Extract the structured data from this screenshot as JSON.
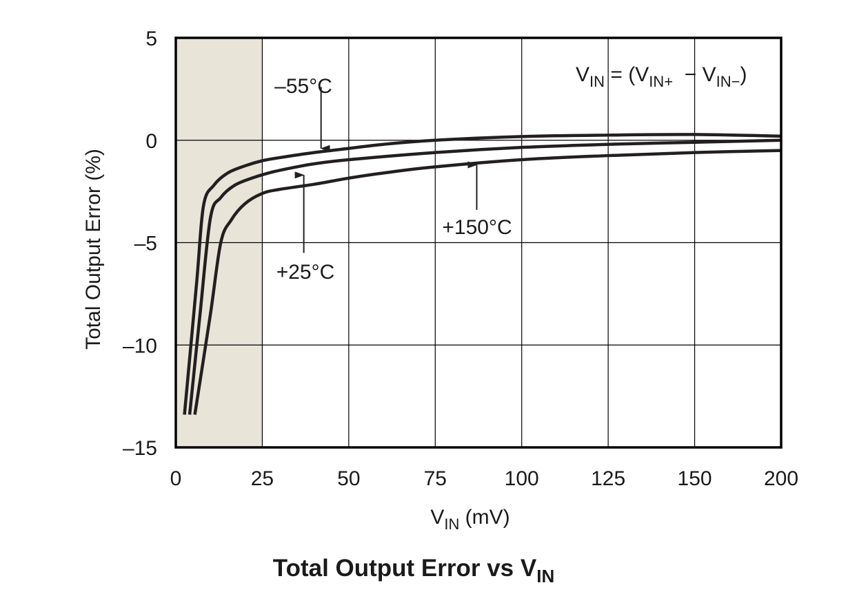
{
  "chart_data": {
    "type": "line",
    "title": "Total Output Error vs V",
    "title_sub": "IN",
    "xlabel": "V",
    "xlabel_sub": "IN",
    "xlabel_unit": " (mV)",
    "ylabel": "Total Output Error (%)",
    "xlim": [
      0,
      200
    ],
    "ylim": [
      -15,
      5
    ],
    "x_ticks": [
      0,
      25,
      50,
      75,
      100,
      125,
      150,
      200
    ],
    "y_ticks": [
      5,
      0,
      -5,
      -10,
      -15
    ],
    "x_tick_labels": [
      "0",
      "25",
      "50",
      "75",
      "100",
      "125",
      "150",
      "200"
    ],
    "y_tick_labels": [
      "5",
      "0",
      "–5",
      "–10",
      "–15"
    ],
    "grid": true,
    "shaded_region": {
      "x": [
        0,
        25
      ],
      "color": "#e8e4d8"
    },
    "line_color": "#231f20",
    "series": [
      {
        "name": "–55°C",
        "x": [
          2.5,
          6,
          8,
          11,
          15,
          20,
          25,
          30,
          40,
          50,
          60,
          75,
          100,
          125,
          150,
          200
        ],
        "y": [
          -13.4,
          -7,
          -3.2,
          -2.2,
          -1.6,
          -1.25,
          -1.0,
          -0.85,
          -0.6,
          -0.4,
          -0.2,
          0.0,
          0.18,
          0.25,
          0.28,
          0.2
        ]
      },
      {
        "name": "+25°C",
        "x": [
          4,
          7,
          10,
          13,
          17,
          22,
          28,
          35,
          40,
          50,
          75,
          100,
          125,
          150,
          200
        ],
        "y": [
          -13.4,
          -8.5,
          -3.8,
          -2.8,
          -2.2,
          -1.85,
          -1.55,
          -1.3,
          -1.15,
          -0.95,
          -0.6,
          -0.35,
          -0.2,
          -0.1,
          0.0
        ]
      },
      {
        "name": "+150°C",
        "x": [
          5.5,
          10,
          13,
          16,
          20,
          25,
          30,
          40,
          50,
          60,
          75,
          100,
          125,
          150,
          200
        ],
        "y": [
          -13.4,
          -8.5,
          -5.0,
          -3.9,
          -3.1,
          -2.6,
          -2.4,
          -2.15,
          -1.85,
          -1.6,
          -1.3,
          -0.95,
          -0.75,
          -0.6,
          -0.5
        ]
      }
    ],
    "annotations": {
      "equation": {
        "main": "V",
        "sub1": "IN",
        "eq": " = (V",
        "sub2": "IN+",
        "mid": "  − V",
        "sub3": "IN−",
        "end": ")"
      },
      "labels": [
        {
          "text": "–55°C",
          "arrow_from": [
            39,
            2.6
          ],
          "arrow_to": [
            39,
            -0.4
          ]
        },
        {
          "text": "+25°C",
          "arrow_from": [
            37,
            -5.5
          ],
          "arrow_to": [
            37,
            -1.7
          ]
        },
        {
          "text": "+150°C",
          "arrow_from": [
            87,
            -3.4
          ],
          "arrow_to": [
            87,
            -1.2
          ]
        }
      ]
    }
  }
}
